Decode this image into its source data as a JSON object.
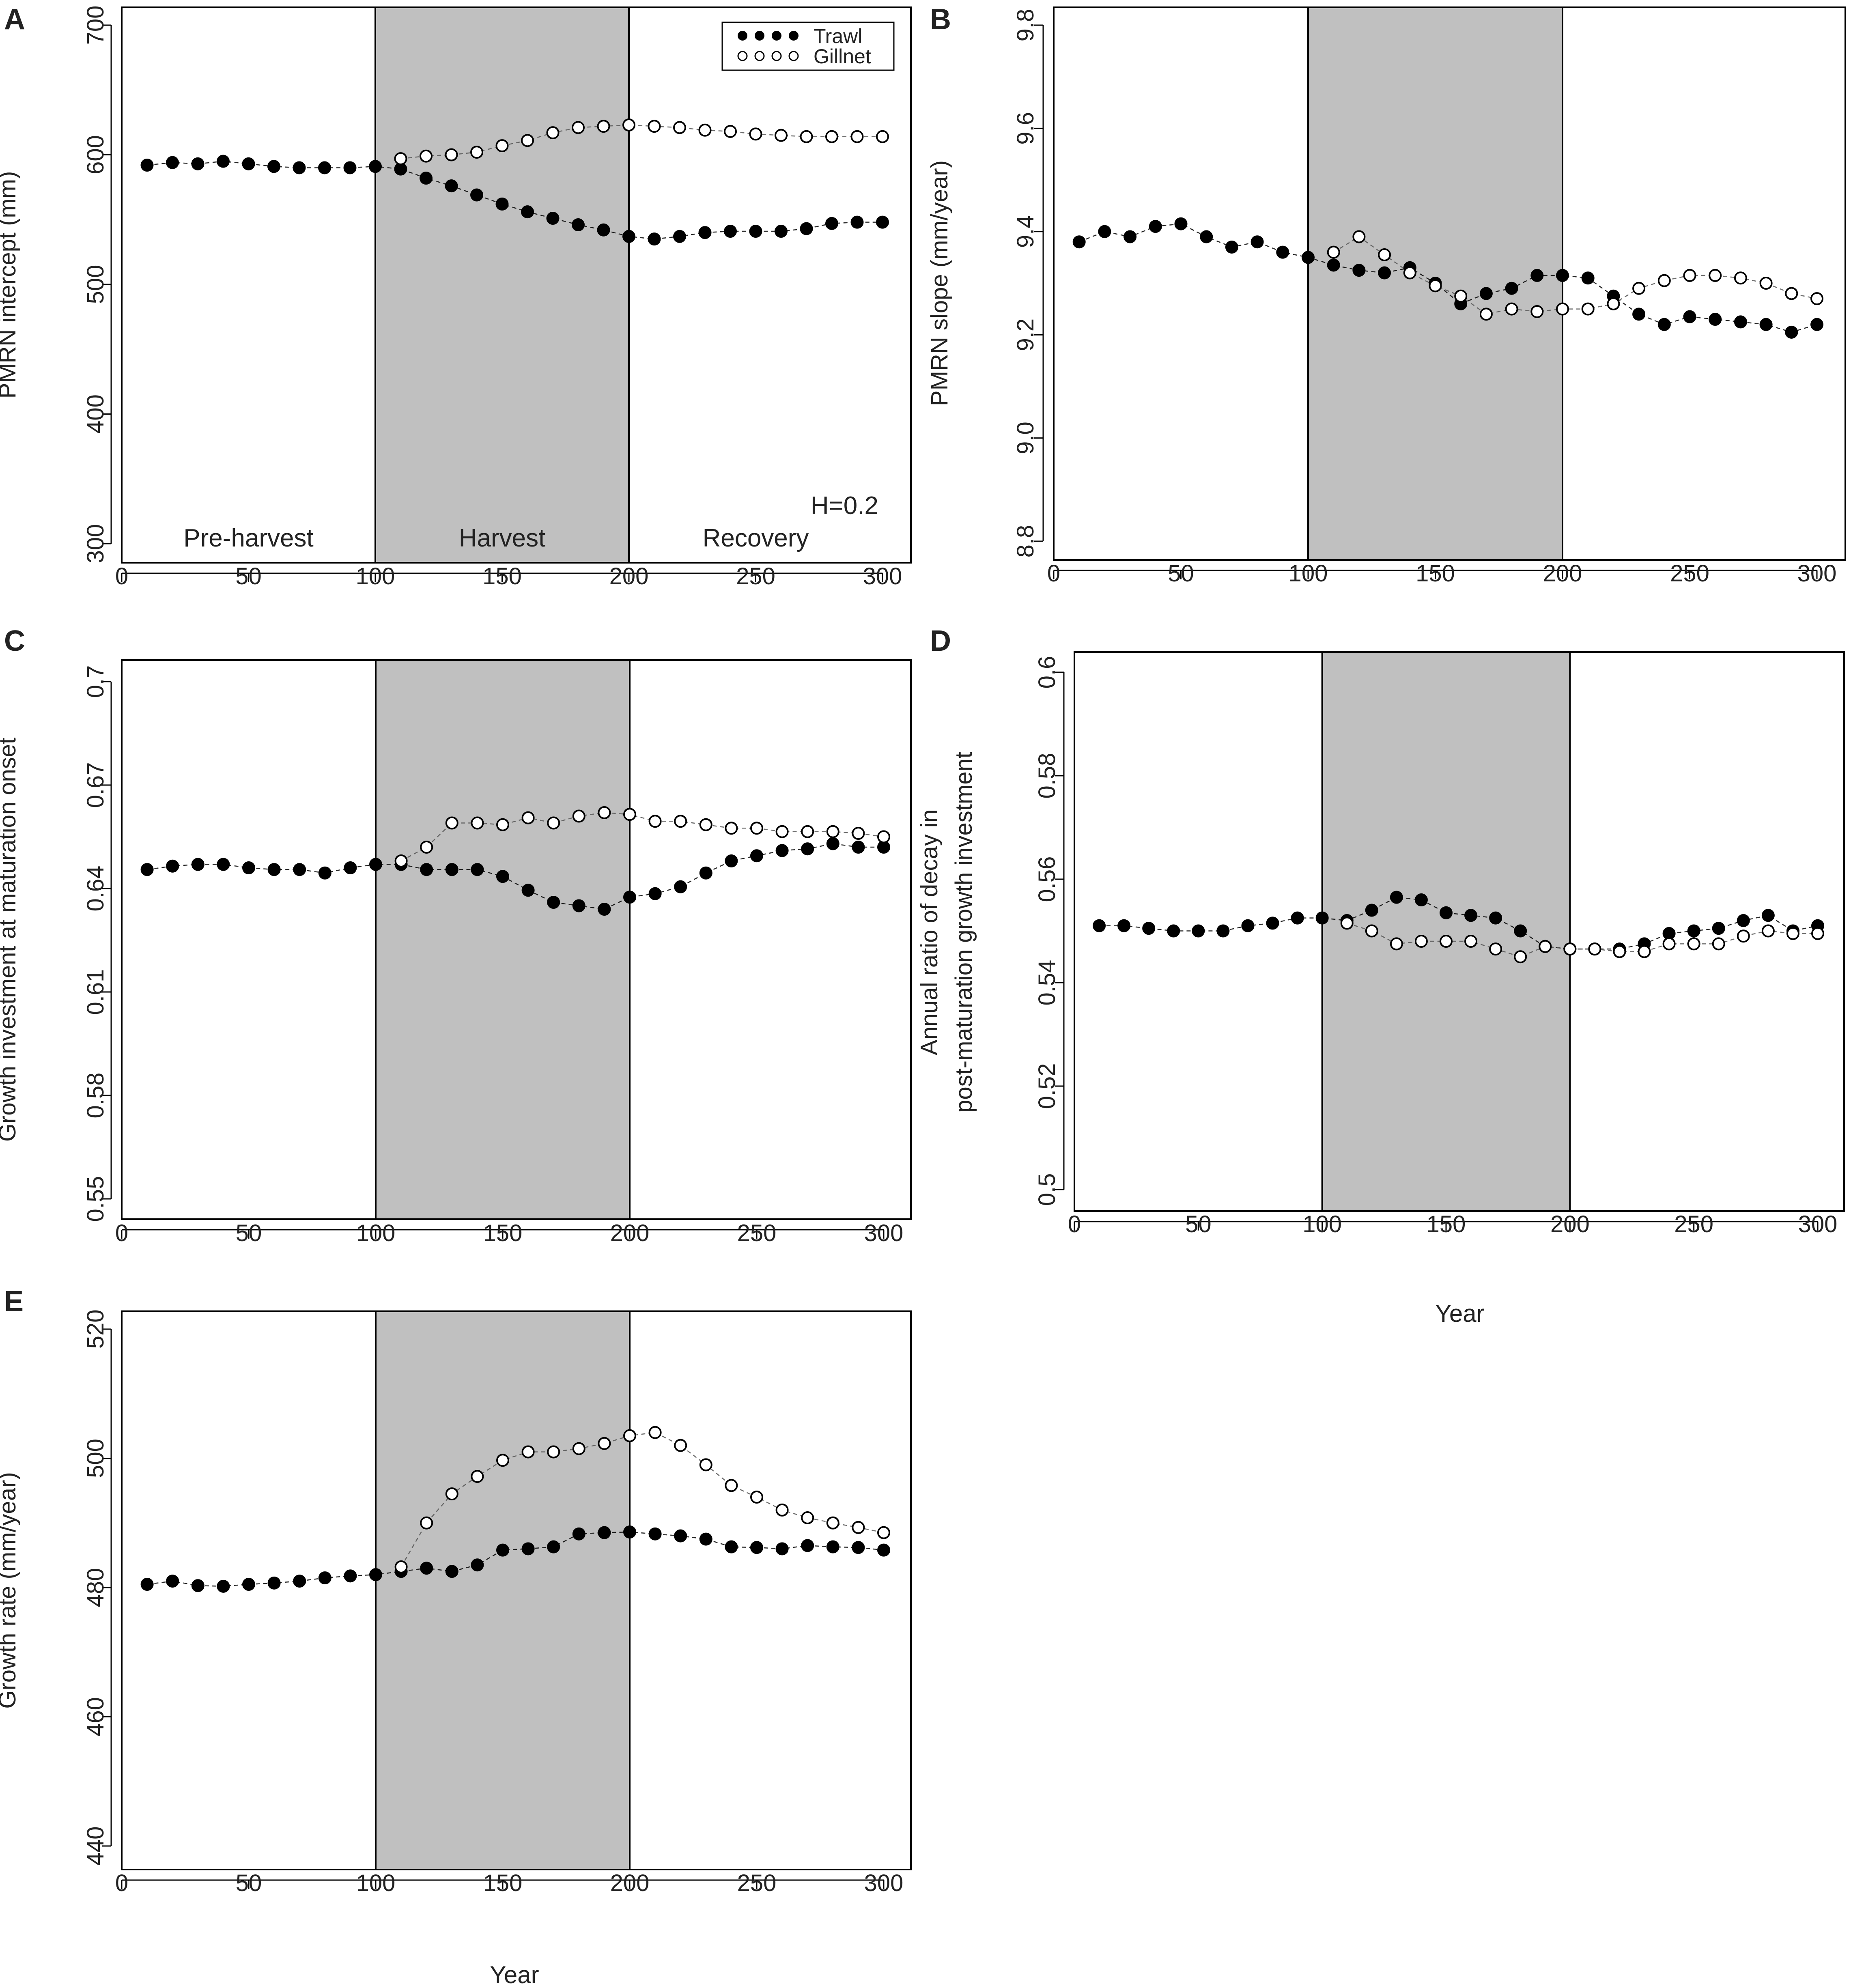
{
  "figure": {
    "xlabel_d": "Year",
    "xlabel_e": "Year"
  },
  "colors": {
    "harvest_fill": "#c0c0c0",
    "axis": "#000000",
    "filled_marker": "#000000",
    "open_marker_stroke": "#000000",
    "open_marker_fill": "#ffffff",
    "text": "#222222"
  },
  "chart_data": [
    {
      "panel": "A",
      "type": "scatter",
      "xlabel": "",
      "ylabel": "PMRN intercept (mm)",
      "xlim": [
        0,
        300
      ],
      "ylim": [
        300,
        700
      ],
      "xticks": [
        "0",
        "50",
        "100",
        "150",
        "200",
        "250",
        "300"
      ],
      "yticks": [
        "300",
        "400",
        "500",
        "600",
        "700"
      ],
      "harvest_period": [
        100,
        200
      ],
      "phase_labels": [
        "Pre-harvest",
        "Harvest",
        "Recovery"
      ],
      "annotation": "H=0.2",
      "legend": {
        "position": "top-right",
        "entries": [
          "Trawl",
          "Gillnet"
        ]
      },
      "series": [
        {
          "name": "Trawl",
          "marker": "filled",
          "x": [
            10,
            20,
            30,
            40,
            50,
            60,
            70,
            80,
            90,
            100,
            110,
            120,
            130,
            140,
            150,
            160,
            170,
            180,
            190,
            200,
            210,
            220,
            230,
            240,
            250,
            260,
            270,
            280,
            290,
            300
          ],
          "y": [
            592,
            594,
            593,
            595,
            593,
            591,
            590,
            590,
            590,
            591,
            589,
            582,
            576,
            569,
            562,
            556,
            551,
            546,
            542,
            537,
            535,
            537,
            540,
            541,
            541,
            541,
            543,
            547,
            548,
            548
          ]
        },
        {
          "name": "Gillnet",
          "marker": "open",
          "x": [
            110,
            120,
            130,
            140,
            150,
            160,
            170,
            180,
            190,
            200,
            210,
            220,
            230,
            240,
            250,
            260,
            270,
            280,
            290,
            300
          ],
          "y": [
            597,
            599,
            600,
            602,
            607,
            611,
            617,
            621,
            622,
            623,
            622,
            621,
            619,
            618,
            616,
            615,
            614,
            614,
            614,
            614
          ]
        }
      ]
    },
    {
      "panel": "B",
      "type": "scatter",
      "xlabel": "",
      "ylabel": "PMRN slope (mm/year)",
      "xlim": [
        0,
        300
      ],
      "ylim": [
        8.8,
        9.8
      ],
      "xticks": [
        "0",
        "50",
        "100",
        "150",
        "200",
        "250",
        "300"
      ],
      "yticks": [
        "8.8",
        "9.0",
        "9.2",
        "9.4",
        "9.6",
        "9.8"
      ],
      "harvest_period": [
        100,
        200
      ],
      "series": [
        {
          "name": "Trawl",
          "marker": "filled",
          "x": [
            10,
            20,
            30,
            40,
            50,
            60,
            70,
            80,
            90,
            100,
            110,
            120,
            130,
            140,
            150,
            160,
            170,
            180,
            190,
            200,
            210,
            220,
            230,
            240,
            250,
            260,
            270,
            280,
            290,
            300
          ],
          "y": [
            9.38,
            9.4,
            9.39,
            9.41,
            9.415,
            9.39,
            9.37,
            9.38,
            9.36,
            9.35,
            9.335,
            9.325,
            9.32,
            9.33,
            9.3,
            9.26,
            9.28,
            9.29,
            9.315,
            9.315,
            9.31,
            9.275,
            9.24,
            9.22,
            9.235,
            9.23,
            9.225,
            9.22,
            9.205,
            9.22
          ]
        },
        {
          "name": "Gillnet",
          "marker": "open",
          "x": [
            110,
            120,
            130,
            140,
            150,
            160,
            170,
            180,
            190,
            200,
            210,
            220,
            230,
            240,
            250,
            260,
            270,
            280,
            290,
            300
          ],
          "y": [
            9.36,
            9.39,
            9.355,
            9.32,
            9.295,
            9.275,
            9.24,
            9.25,
            9.245,
            9.25,
            9.25,
            9.26,
            9.29,
            9.305,
            9.315,
            9.315,
            9.31,
            9.3,
            9.28,
            9.27
          ]
        }
      ]
    },
    {
      "panel": "C",
      "type": "scatter",
      "xlabel": "",
      "ylabel": "Growth investment at maturation onset",
      "xlim": [
        0,
        300
      ],
      "ylim": [
        0.55,
        0.7
      ],
      "xticks": [
        "0",
        "50",
        "100",
        "150",
        "200",
        "250",
        "300"
      ],
      "yticks": [
        "0.55",
        "0.58",
        "0.61",
        "0.64",
        "0.67",
        "0.7"
      ],
      "harvest_period": [
        100,
        200
      ],
      "series": [
        {
          "name": "Trawl",
          "marker": "filled",
          "x": [
            10,
            20,
            30,
            40,
            50,
            60,
            70,
            80,
            90,
            100,
            110,
            120,
            130,
            140,
            150,
            160,
            170,
            180,
            190,
            200,
            210,
            220,
            230,
            240,
            250,
            260,
            270,
            280,
            290,
            300
          ],
          "y": [
            0.6455,
            0.6465,
            0.647,
            0.647,
            0.646,
            0.6455,
            0.6455,
            0.6445,
            0.646,
            0.647,
            0.647,
            0.6455,
            0.6455,
            0.6455,
            0.6435,
            0.6395,
            0.636,
            0.635,
            0.634,
            0.6375,
            0.6385,
            0.6405,
            0.6445,
            0.648,
            0.6495,
            0.651,
            0.6515,
            0.653,
            0.652,
            0.652
          ]
        },
        {
          "name": "Gillnet",
          "marker": "open",
          "x": [
            110,
            120,
            130,
            140,
            150,
            160,
            170,
            180,
            190,
            200,
            210,
            220,
            230,
            240,
            250,
            260,
            270,
            280,
            290,
            300
          ],
          "y": [
            0.648,
            0.652,
            0.659,
            0.659,
            0.6585,
            0.6605,
            0.659,
            0.661,
            0.662,
            0.6615,
            0.6595,
            0.6595,
            0.6585,
            0.6575,
            0.6575,
            0.6565,
            0.6565,
            0.6565,
            0.656,
            0.655
          ]
        }
      ]
    },
    {
      "panel": "D",
      "type": "scatter",
      "xlabel": "Year",
      "ylabel": "Annual ratio of decay in post-maturation growth investment",
      "ylabel_lines": [
        "Annual ratio of decay in",
        "post-maturation growth investment"
      ],
      "xlim": [
        0,
        300
      ],
      "ylim": [
        0.5,
        0.6
      ],
      "xticks": [
        "0",
        "50",
        "100",
        "150",
        "200",
        "250",
        "300"
      ],
      "yticks": [
        "0.5",
        "0.52",
        "0.54",
        "0.56",
        "0.58",
        "0.6"
      ],
      "harvest_period": [
        100,
        200
      ],
      "series": [
        {
          "name": "Trawl",
          "marker": "filled",
          "x": [
            10,
            20,
            30,
            40,
            50,
            60,
            70,
            80,
            90,
            100,
            110,
            120,
            130,
            140,
            150,
            160,
            170,
            180,
            190,
            200,
            210,
            220,
            230,
            240,
            250,
            260,
            270,
            280,
            290,
            300
          ],
          "y": [
            0.551,
            0.551,
            0.5505,
            0.55,
            0.55,
            0.55,
            0.551,
            0.5515,
            0.5525,
            0.5525,
            0.552,
            0.554,
            0.5565,
            0.556,
            0.5535,
            0.553,
            0.5525,
            0.55,
            0.547,
            0.5465,
            0.5465,
            0.5465,
            0.5475,
            0.5495,
            0.55,
            0.5505,
            0.552,
            0.553,
            0.55,
            0.551
          ]
        },
        {
          "name": "Gillnet",
          "marker": "open",
          "x": [
            110,
            120,
            130,
            140,
            150,
            160,
            170,
            180,
            190,
            200,
            210,
            220,
            230,
            240,
            250,
            260,
            270,
            280,
            290,
            300
          ],
          "y": [
            0.5515,
            0.55,
            0.5475,
            0.548,
            0.548,
            0.548,
            0.5465,
            0.545,
            0.547,
            0.5465,
            0.5465,
            0.546,
            0.546,
            0.5475,
            0.5475,
            0.5475,
            0.549,
            0.55,
            0.5495,
            0.5495
          ]
        }
      ]
    },
    {
      "panel": "E",
      "type": "scatter",
      "xlabel": "Year",
      "ylabel": "Growth rate (mm/year)",
      "xlim": [
        0,
        300
      ],
      "ylim": [
        440,
        520
      ],
      "xticks": [
        "0",
        "50",
        "100",
        "150",
        "200",
        "250",
        "300"
      ],
      "yticks": [
        "440",
        "460",
        "480",
        "500",
        "520"
      ],
      "harvest_period": [
        100,
        200
      ],
      "series": [
        {
          "name": "Trawl",
          "marker": "filled",
          "x": [
            10,
            20,
            30,
            40,
            50,
            60,
            70,
            80,
            90,
            100,
            110,
            120,
            130,
            140,
            150,
            160,
            170,
            180,
            190,
            200,
            210,
            220,
            230,
            240,
            250,
            260,
            270,
            280,
            290,
            300
          ],
          "y": [
            480.5,
            481.0,
            480.3,
            480.2,
            480.5,
            480.7,
            481.0,
            481.5,
            481.8,
            482.0,
            482.5,
            483.0,
            482.5,
            483.5,
            485.8,
            486.0,
            486.3,
            488.3,
            488.5,
            488.6,
            488.3,
            488.0,
            487.5,
            486.3,
            486.2,
            486.0,
            486.5,
            486.3,
            486.2,
            485.8
          ]
        },
        {
          "name": "Gillnet",
          "marker": "open",
          "x": [
            110,
            120,
            130,
            140,
            150,
            160,
            170,
            180,
            190,
            200,
            210,
            220,
            230,
            240,
            250,
            260,
            270,
            280,
            290,
            300
          ],
          "y": [
            483.2,
            490.0,
            494.5,
            497.2,
            499.7,
            501.0,
            501.0,
            501.5,
            502.3,
            503.5,
            504.0,
            502.0,
            499.0,
            495.8,
            494.0,
            492.0,
            490.8,
            490.0,
            489.3,
            488.5
          ]
        }
      ]
    }
  ]
}
